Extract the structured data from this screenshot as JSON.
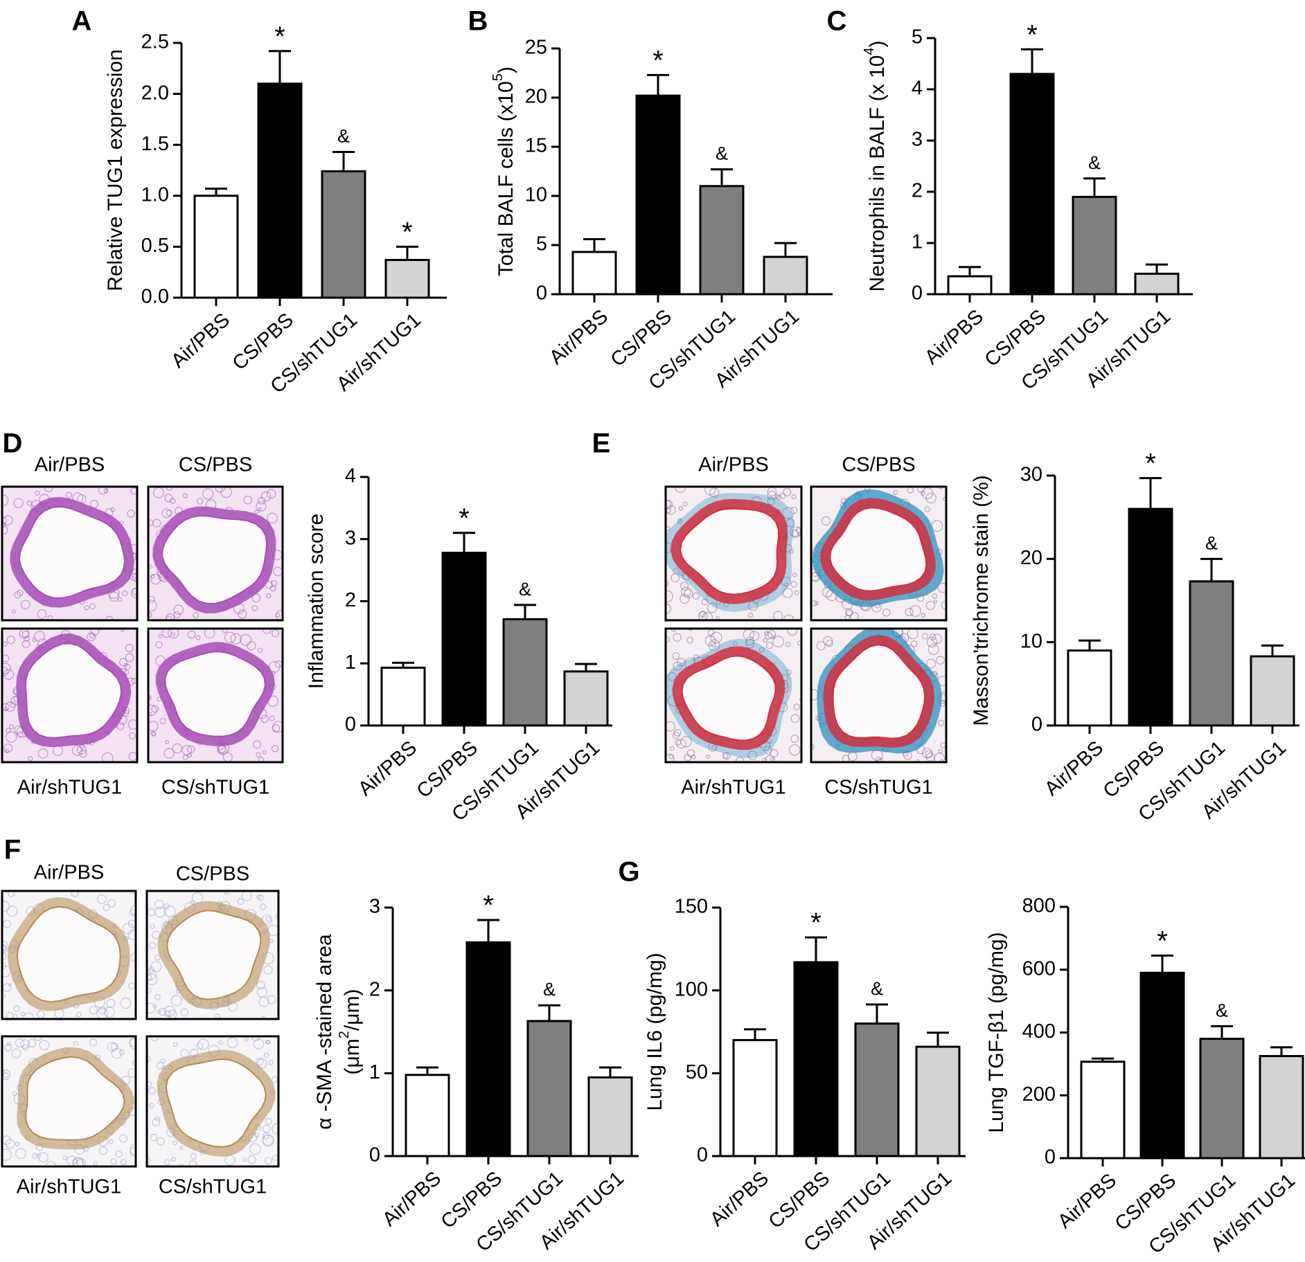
{
  "colors": {
    "bars": [
      "#ffffff",
      "#000000",
      "#7f7f7f",
      "#d3d3d3"
    ],
    "he_bg": "#f3e3f3",
    "he_wall": "#a64fb4",
    "he_dot": "#9c5ab0",
    "masson_bg": "#f4eef2",
    "masson_wall": "#d1303f",
    "masson_blue": "#2f8fc0",
    "masson_dot": "#8a6a95",
    "ihc_bg": "#f7f4f6",
    "ihc_wall": "#b58a4e",
    "ihc_dot": "#9aa2cc"
  },
  "categories": [
    "Air/PBS",
    "CS/PBS",
    "CS/shTUG1",
    "Air/shTUG1"
  ],
  "chart_data": [
    {
      "id": "A",
      "panel_label": "A",
      "type": "bar",
      "categories": [
        "Air/PBS",
        "CS/PBS",
        "CS/shTUG1",
        "Air/shTUG1"
      ],
      "values": [
        1.0,
        2.1,
        1.24,
        0.37
      ],
      "errors": [
        0.07,
        0.32,
        0.19,
        0.13
      ],
      "significance": [
        "",
        "*",
        "&",
        "*"
      ],
      "ylabel": "Relative TUG1 expression",
      "ylim": [
        0,
        2.5
      ],
      "yticks": [
        0,
        0.5,
        1.0,
        1.5,
        2.0,
        2.5
      ],
      "ytick_labels": [
        "0.0",
        "0.5",
        "1.0",
        "1.5",
        "2.0",
        "2.5"
      ],
      "grid": false
    },
    {
      "id": "B",
      "panel_label": "B",
      "type": "bar",
      "categories": [
        "Air/PBS",
        "CS/PBS",
        "CS/shTUG1",
        "Air/shTUG1"
      ],
      "values": [
        4.3,
        20.2,
        11.0,
        3.8
      ],
      "errors": [
        1.3,
        2.1,
        1.7,
        1.4
      ],
      "significance": [
        "",
        "*",
        "&",
        ""
      ],
      "ylabel": "Total BALF cells (x10",
      "ylabel_sup": "5",
      "ylabel_end": ")",
      "ylim": [
        0,
        25
      ],
      "yticks": [
        0,
        5,
        10,
        15,
        20,
        25
      ],
      "ytick_labels": [
        "0",
        "5",
        "10",
        "15",
        "20",
        "25"
      ],
      "grid": false
    },
    {
      "id": "C",
      "panel_label": "C",
      "type": "bar",
      "categories": [
        "Air/PBS",
        "CS/PBS",
        "CS/shTUG1",
        "Air/shTUG1"
      ],
      "values": [
        0.35,
        4.3,
        1.9,
        0.4
      ],
      "errors": [
        0.18,
        0.48,
        0.36,
        0.18
      ],
      "significance": [
        "",
        "*",
        "&",
        ""
      ],
      "ylabel": "Neutrophils in BALF (x 10",
      "ylabel_sup": "4",
      "ylabel_end": ")",
      "ylim": [
        0,
        5
      ],
      "yticks": [
        0,
        1,
        2,
        3,
        4,
        5
      ],
      "ytick_labels": [
        "0",
        "1",
        "2",
        "3",
        "4",
        "5"
      ],
      "grid": false
    },
    {
      "id": "D",
      "panel_label": "D",
      "type": "bar",
      "categories": [
        "Air/PBS",
        "CS/PBS",
        "CS/shTUG1",
        "Air/shTUG1"
      ],
      "values": [
        0.93,
        2.78,
        1.71,
        0.87
      ],
      "errors": [
        0.08,
        0.32,
        0.23,
        0.12
      ],
      "significance": [
        "",
        "*",
        "&",
        ""
      ],
      "ylabel": "Inflammation score",
      "ylim": [
        0,
        4
      ],
      "yticks": [
        0,
        1,
        2,
        3,
        4
      ],
      "ytick_labels": [
        "0",
        "1",
        "2",
        "3",
        "4"
      ],
      "grid": false
    },
    {
      "id": "E",
      "panel_label": "E",
      "type": "bar",
      "categories": [
        "Air/PBS",
        "CS/PBS",
        "CS/shTUG1",
        "Air/shTUG1"
      ],
      "values": [
        9.0,
        26.0,
        17.3,
        8.3
      ],
      "errors": [
        1.2,
        3.7,
        2.7,
        1.3
      ],
      "significance": [
        "",
        "*",
        "&",
        ""
      ],
      "ylabel": "Masson'trichrome stain (%)",
      "ylim": [
        0,
        30
      ],
      "yticks": [
        0,
        10,
        20,
        30
      ],
      "ytick_labels": [
        "0",
        "10",
        "20",
        "30"
      ],
      "grid": false
    },
    {
      "id": "F",
      "panel_label": "F",
      "type": "bar",
      "categories": [
        "Air/PBS",
        "CS/PBS",
        "CS/shTUG1",
        "Air/shTUG1"
      ],
      "values": [
        0.98,
        2.58,
        1.63,
        0.95
      ],
      "errors": [
        0.09,
        0.27,
        0.19,
        0.12
      ],
      "significance": [
        "",
        "*",
        "&",
        ""
      ],
      "ylabel": "α -SMA -stained area",
      "ylabel2": "(μm",
      "ylabel2_sup": "2",
      "ylabel2_end": "/μm)",
      "ylim": [
        0,
        3
      ],
      "yticks": [
        0,
        1,
        2,
        3
      ],
      "ytick_labels": [
        "0",
        "1",
        "2",
        "3"
      ],
      "grid": false
    },
    {
      "id": "G1",
      "panel_label": "G",
      "type": "bar",
      "categories": [
        "Air/PBS",
        "CS/PBS",
        "CS/shTUG1",
        "Air/shTUG1"
      ],
      "values": [
        70,
        117,
        80,
        66
      ],
      "errors": [
        6.5,
        15,
        11.5,
        8.5
      ],
      "significance": [
        "",
        "*",
        "&",
        ""
      ],
      "ylabel": "Lung IL6 (pg/mg)",
      "ylim": [
        0,
        150
      ],
      "yticks": [
        0,
        50,
        100,
        150
      ],
      "ytick_labels": [
        "0",
        "50",
        "100",
        "150"
      ],
      "grid": false
    },
    {
      "id": "G2",
      "panel_label": "",
      "type": "bar",
      "categories": [
        "Air/PBS",
        "CS/PBS",
        "CS/shTUG1",
        "Air/shTUG1"
      ],
      "values": [
        307,
        590,
        380,
        325
      ],
      "errors": [
        10,
        55,
        40,
        28
      ],
      "significance": [
        "",
        "*",
        "&",
        ""
      ],
      "ylabel": "Lung TGF-β1 (pg/mg)",
      "ylim": [
        0,
        800
      ],
      "yticks": [
        0,
        200,
        400,
        600,
        800
      ],
      "ytick_labels": [
        "0",
        "200",
        "400",
        "600",
        "800"
      ],
      "grid": false
    }
  ],
  "micrographs": [
    {
      "panel": "D",
      "stain": "he",
      "labels": [
        "Air/PBS",
        "CS/PBS",
        "Air/shTUG1",
        "CS/shTUG1"
      ]
    },
    {
      "panel": "E",
      "stain": "masson",
      "labels": [
        "Air/PBS",
        "CS/PBS",
        "Air/shTUG1",
        "CS/shTUG1"
      ]
    },
    {
      "panel": "F",
      "stain": "ihc",
      "labels": [
        "Air/PBS",
        "CS/PBS",
        "Air/shTUG1",
        "CS/shTUG1"
      ]
    }
  ]
}
